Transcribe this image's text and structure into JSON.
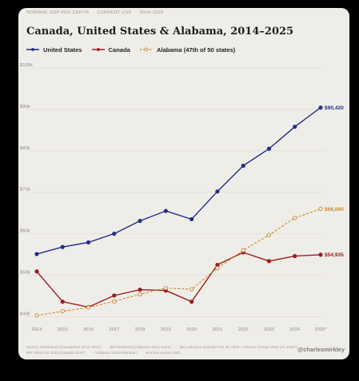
{
  "header": {
    "tags": [
      "NOMINAL GDP PER CAPITA",
      "CURRENT USD",
      "2014–2025"
    ]
  },
  "footer": {
    "lines": [
      [
        "Source: World Bank (Canada/US 2014–2024)",
        "BEA/statistical (Alabama 2014–2024)",
        "BEA advance estimate Feb 20, 2026 + Census Vintage 2025 (AL 2025*)"
      ],
      [
        "IMF WEO Oct 2025 (Canada 2025*)",
        "*Alabama 2025 estimated",
        "Nominal current USD"
      ]
    ],
    "handle": "@charlesmirkley"
  },
  "colors": {
    "us": "#1f2f8a",
    "canada": "#9c1c22",
    "alabama": "#c8892e",
    "grid": "#dcd9d1",
    "background": "#efede7"
  },
  "chart_data": {
    "type": "line",
    "title": "Canada, United States & Alabama, 2014–2025",
    "xlabel": "",
    "ylabel": "",
    "categories": [
      "2014",
      "2015",
      "2016",
      "2017",
      "2018",
      "2019",
      "2020",
      "2021",
      "2022",
      "2023",
      "2024",
      "2025*"
    ],
    "y_ticks": [
      "$40k",
      "$50k",
      "$60k",
      "$70k",
      "$80k",
      "$90k",
      "$100k"
    ],
    "ylim": [
      37000,
      100000
    ],
    "grid": true,
    "legend_position": "top-left",
    "series": [
      {
        "name": "United States",
        "key": "us",
        "style": "solid",
        "values": [
          55100,
          56800,
          57900,
          60000,
          63100,
          65500,
          63500,
          70200,
          76400,
          80500,
          85800,
          90420
        ],
        "end_label": "$90,420"
      },
      {
        "name": "Canada",
        "key": "canada",
        "style": "solid",
        "values": [
          50900,
          43600,
          42300,
          45100,
          46500,
          46300,
          43600,
          52500,
          55500,
          53400,
          54600,
          54935
        ],
        "end_label": "$54,935"
      },
      {
        "name": "Alabama (47th of 50 states)",
        "key": "alabama",
        "style": "dashed",
        "values": [
          40300,
          41300,
          42200,
          43700,
          45400,
          46900,
          46600,
          51700,
          56000,
          59700,
          63800,
          66000
        ],
        "end_label": "$66,000"
      }
    ]
  }
}
